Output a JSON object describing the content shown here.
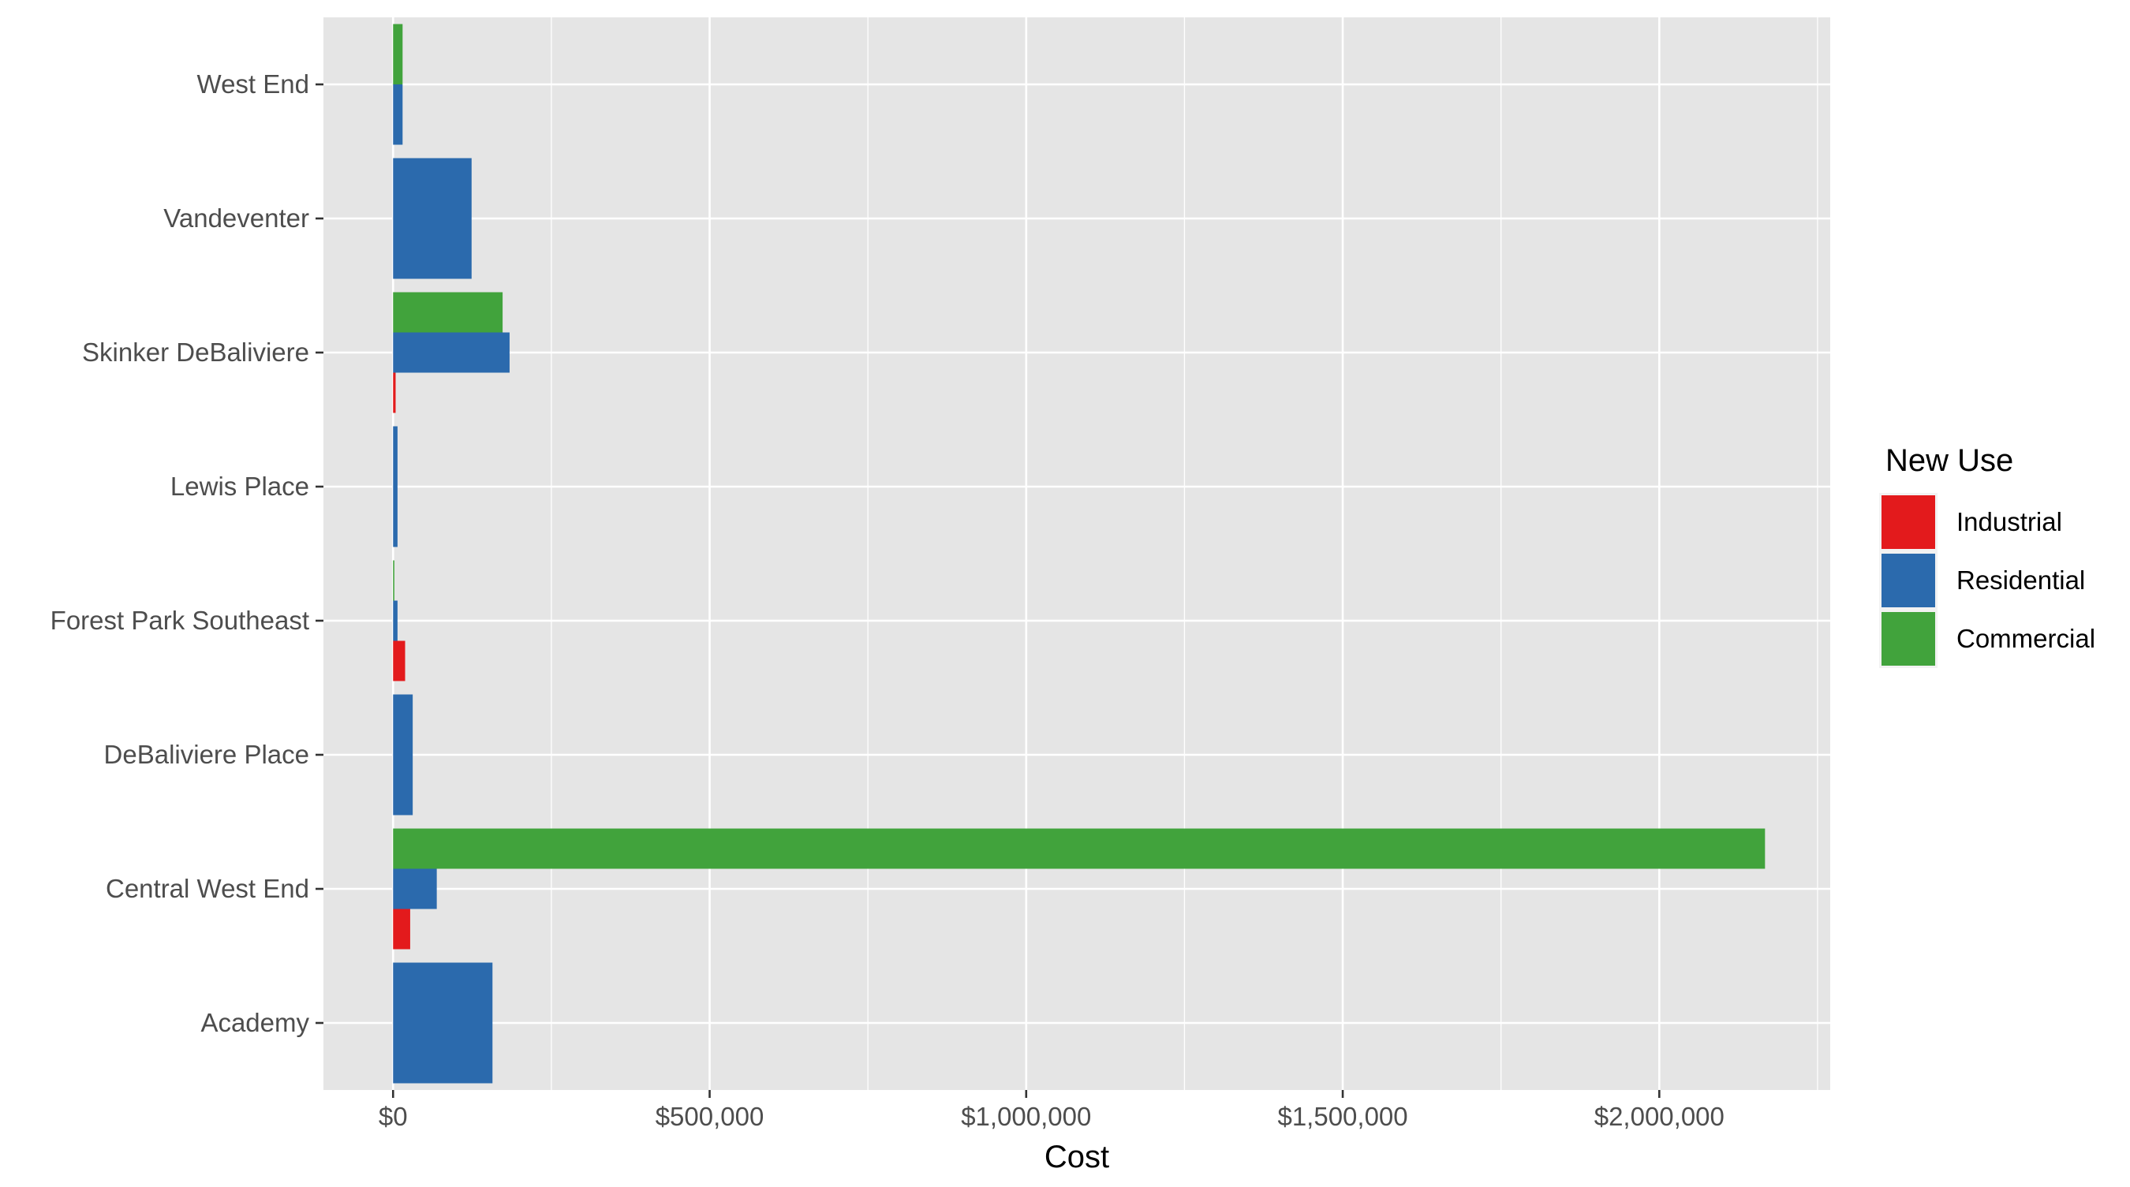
{
  "chart_data": {
    "type": "bar",
    "orientation": "horizontal",
    "position": "dodge",
    "categories": [
      "Academy",
      "Central West End",
      "DeBaliviere Place",
      "Forest Park Southeast",
      "Lewis Place",
      "Skinker DeBaliviere",
      "Vandeventer",
      "West End"
    ],
    "series": [
      {
        "name": "Industrial",
        "color": "#e31a1c",
        "values": [
          null,
          27000,
          null,
          19000,
          null,
          4000,
          null,
          null
        ]
      },
      {
        "name": "Residential",
        "color": "#2b6aad",
        "values": [
          157000,
          69000,
          31000,
          7000,
          7000,
          184000,
          124000,
          15000
        ]
      },
      {
        "name": "Commercial",
        "color": "#41a33c",
        "values": [
          null,
          2167000,
          null,
          2000,
          null,
          173000,
          null,
          15000
        ]
      }
    ],
    "x_ticks": [
      0,
      500000,
      1000000,
      1500000,
      2000000
    ],
    "x_tick_labels": [
      "$0",
      "$500,000",
      "$1,000,000",
      "$1,500,000",
      "$2,000,000"
    ],
    "xlim": [
      -110000,
      2270000
    ],
    "xlabel": "Cost",
    "ylabel": "",
    "legend_title": "New Use",
    "legend_position": "right",
    "grid": true,
    "panel_background": "#e5e5e5",
    "grid_color": "#ffffff"
  }
}
